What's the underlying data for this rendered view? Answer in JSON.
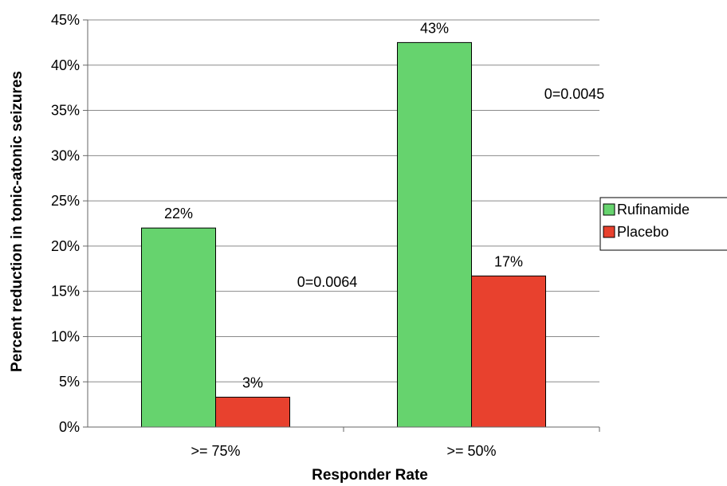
{
  "chart_data": {
    "type": "bar",
    "title": "",
    "xlabel": "Responder Rate",
    "ylabel": "Percent reduction in tonic-atonic seizures",
    "categories": [
      ">= 75%",
      ">= 50%"
    ],
    "series": [
      {
        "name": "Rufinamide",
        "values": [
          22,
          42.5
        ],
        "labels": [
          "22%",
          "43%"
        ],
        "color": "#66d36e"
      },
      {
        "name": "Placebo",
        "values": [
          3.3,
          16.7
        ],
        "labels": [
          "3%",
          "17%"
        ],
        "color": "#e8412e"
      }
    ],
    "annotations": [
      "0=0.0064",
      "0=0.0045"
    ],
    "ylim": [
      0,
      45
    ],
    "yticks": [
      "0%",
      "5%",
      "10%",
      "15%",
      "20%",
      "25%",
      "30%",
      "35%",
      "40%",
      "45%"
    ],
    "grid": true,
    "legend": "right"
  }
}
